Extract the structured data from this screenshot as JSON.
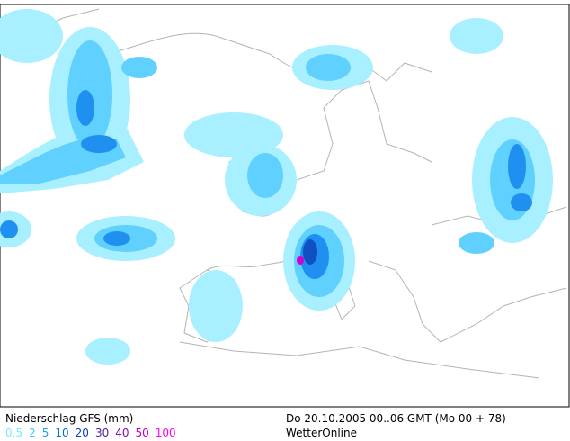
{
  "footer": {
    "title": "Niederschlag GFS (mm)",
    "valid_time": "Do 20.10.2005 00..06 GMT (Mo 00 + 78)",
    "provider": "WetterOnline",
    "legend": [
      {
        "value": 0.5,
        "color": "#80e8ff"
      },
      {
        "value": 2,
        "color": "#40c8ff"
      },
      {
        "value": 5,
        "color": "#20a0f0"
      },
      {
        "value": 10,
        "color": "#0070e0"
      },
      {
        "value": 20,
        "color": "#1040c0"
      },
      {
        "value": 30,
        "color": "#5020a0"
      },
      {
        "value": 40,
        "color": "#8010b0"
      },
      {
        "value": 50,
        "color": "#c000c0"
      },
      {
        "value": 100,
        "color": "#ff00ff"
      }
    ]
  }
}
